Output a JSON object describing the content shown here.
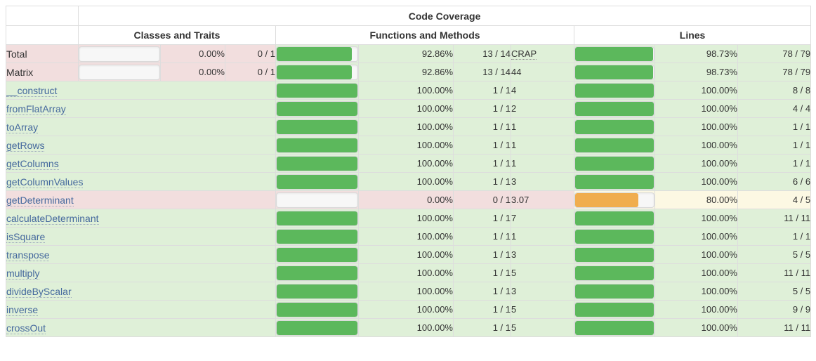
{
  "header": {
    "title": "Code Coverage",
    "groups": [
      {
        "label": "Classes and Traits"
      },
      {
        "label": "Functions and Methods"
      },
      {
        "label": "Lines"
      }
    ]
  },
  "colors": {
    "success_bg": "#dff0d8",
    "danger_bg": "#f2dede",
    "warning_bg": "#fcf8e3",
    "bar_green": "#5cb85c",
    "bar_orange": "#f0ad4e",
    "link_blue": "#44689d"
  },
  "rows": [
    {
      "name": "Total",
      "link": false,
      "name_status": "danger",
      "classes": {
        "bar": 0,
        "status": "danger",
        "pct": "0.00%",
        "ratio": "0 / 1"
      },
      "functions": {
        "bar": 92.86,
        "status": "success",
        "pct": "92.86%",
        "ratio": "13 / 14"
      },
      "crap": {
        "value": "CRAP",
        "header": true,
        "status": "success"
      },
      "lines": {
        "bar": 98.73,
        "status": "success",
        "pct": "98.73%",
        "ratio": "78 / 79"
      }
    },
    {
      "name": "Matrix",
      "link": false,
      "name_status": "danger",
      "classes": {
        "bar": 0,
        "status": "danger",
        "pct": "0.00%",
        "ratio": "0 / 1"
      },
      "functions": {
        "bar": 92.86,
        "status": "success",
        "pct": "92.86%",
        "ratio": "13 / 14"
      },
      "crap": {
        "value": "44",
        "header": false,
        "status": "success"
      },
      "lines": {
        "bar": 98.73,
        "status": "success",
        "pct": "98.73%",
        "ratio": "78 / 79"
      }
    },
    {
      "name": "__construct",
      "link": true,
      "name_status": "success",
      "classes": null,
      "functions": {
        "bar": 100,
        "status": "success",
        "pct": "100.00%",
        "ratio": "1 / 1"
      },
      "crap": {
        "value": "4",
        "header": false,
        "status": "success"
      },
      "lines": {
        "bar": 100,
        "status": "success",
        "pct": "100.00%",
        "ratio": "8 / 8"
      }
    },
    {
      "name": "fromFlatArray",
      "link": true,
      "name_status": "success",
      "classes": null,
      "functions": {
        "bar": 100,
        "status": "success",
        "pct": "100.00%",
        "ratio": "1 / 1"
      },
      "crap": {
        "value": "2",
        "header": false,
        "status": "success"
      },
      "lines": {
        "bar": 100,
        "status": "success",
        "pct": "100.00%",
        "ratio": "4 / 4"
      }
    },
    {
      "name": "toArray",
      "link": true,
      "name_status": "success",
      "classes": null,
      "functions": {
        "bar": 100,
        "status": "success",
        "pct": "100.00%",
        "ratio": "1 / 1"
      },
      "crap": {
        "value": "1",
        "header": false,
        "status": "success"
      },
      "lines": {
        "bar": 100,
        "status": "success",
        "pct": "100.00%",
        "ratio": "1 / 1"
      }
    },
    {
      "name": "getRows",
      "link": true,
      "name_status": "success",
      "classes": null,
      "functions": {
        "bar": 100,
        "status": "success",
        "pct": "100.00%",
        "ratio": "1 / 1"
      },
      "crap": {
        "value": "1",
        "header": false,
        "status": "success"
      },
      "lines": {
        "bar": 100,
        "status": "success",
        "pct": "100.00%",
        "ratio": "1 / 1"
      }
    },
    {
      "name": "getColumns",
      "link": true,
      "name_status": "success",
      "classes": null,
      "functions": {
        "bar": 100,
        "status": "success",
        "pct": "100.00%",
        "ratio": "1 / 1"
      },
      "crap": {
        "value": "1",
        "header": false,
        "status": "success"
      },
      "lines": {
        "bar": 100,
        "status": "success",
        "pct": "100.00%",
        "ratio": "1 / 1"
      }
    },
    {
      "name": "getColumnValues",
      "link": true,
      "name_status": "success",
      "classes": null,
      "functions": {
        "bar": 100,
        "status": "success",
        "pct": "100.00%",
        "ratio": "1 / 1"
      },
      "crap": {
        "value": "3",
        "header": false,
        "status": "success"
      },
      "lines": {
        "bar": 100,
        "status": "success",
        "pct": "100.00%",
        "ratio": "6 / 6"
      }
    },
    {
      "name": "getDeterminant",
      "link": true,
      "name_status": "danger",
      "classes": null,
      "functions": {
        "bar": 0,
        "status": "danger",
        "pct": "0.00%",
        "ratio": "0 / 1"
      },
      "crap": {
        "value": "3.07",
        "header": false,
        "status": "danger"
      },
      "lines": {
        "bar": 80,
        "status": "warning",
        "pct": "80.00%",
        "ratio": "4 / 5"
      }
    },
    {
      "name": "calculateDeterminant",
      "link": true,
      "name_status": "success",
      "classes": null,
      "functions": {
        "bar": 100,
        "status": "success",
        "pct": "100.00%",
        "ratio": "1 / 1"
      },
      "crap": {
        "value": "7",
        "header": false,
        "status": "success"
      },
      "lines": {
        "bar": 100,
        "status": "success",
        "pct": "100.00%",
        "ratio": "11 / 11"
      }
    },
    {
      "name": "isSquare",
      "link": true,
      "name_status": "success",
      "classes": null,
      "functions": {
        "bar": 100,
        "status": "success",
        "pct": "100.00%",
        "ratio": "1 / 1"
      },
      "crap": {
        "value": "1",
        "header": false,
        "status": "success"
      },
      "lines": {
        "bar": 100,
        "status": "success",
        "pct": "100.00%",
        "ratio": "1 / 1"
      }
    },
    {
      "name": "transpose",
      "link": true,
      "name_status": "success",
      "classes": null,
      "functions": {
        "bar": 100,
        "status": "success",
        "pct": "100.00%",
        "ratio": "1 / 1"
      },
      "crap": {
        "value": "3",
        "header": false,
        "status": "success"
      },
      "lines": {
        "bar": 100,
        "status": "success",
        "pct": "100.00%",
        "ratio": "5 / 5"
      }
    },
    {
      "name": "multiply",
      "link": true,
      "name_status": "success",
      "classes": null,
      "functions": {
        "bar": 100,
        "status": "success",
        "pct": "100.00%",
        "ratio": "1 / 1"
      },
      "crap": {
        "value": "5",
        "header": false,
        "status": "success"
      },
      "lines": {
        "bar": 100,
        "status": "success",
        "pct": "100.00%",
        "ratio": "11 / 11"
      }
    },
    {
      "name": "divideByScalar",
      "link": true,
      "name_status": "success",
      "classes": null,
      "functions": {
        "bar": 100,
        "status": "success",
        "pct": "100.00%",
        "ratio": "1 / 1"
      },
      "crap": {
        "value": "3",
        "header": false,
        "status": "success"
      },
      "lines": {
        "bar": 100,
        "status": "success",
        "pct": "100.00%",
        "ratio": "5 / 5"
      }
    },
    {
      "name": "inverse",
      "link": true,
      "name_status": "success",
      "classes": null,
      "functions": {
        "bar": 100,
        "status": "success",
        "pct": "100.00%",
        "ratio": "1 / 1"
      },
      "crap": {
        "value": "5",
        "header": false,
        "status": "success"
      },
      "lines": {
        "bar": 100,
        "status": "success",
        "pct": "100.00%",
        "ratio": "9 / 9"
      }
    },
    {
      "name": "crossOut",
      "link": true,
      "name_status": "success",
      "classes": null,
      "functions": {
        "bar": 100,
        "status": "success",
        "pct": "100.00%",
        "ratio": "1 / 1"
      },
      "crap": {
        "value": "5",
        "header": false,
        "status": "success"
      },
      "lines": {
        "bar": 100,
        "status": "success",
        "pct": "100.00%",
        "ratio": "11 / 11"
      }
    }
  ]
}
